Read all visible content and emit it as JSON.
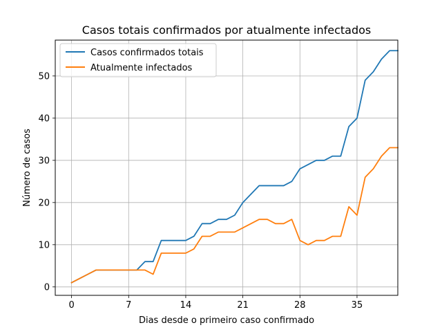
{
  "chart_data": {
    "type": "line",
    "title": "Casos totais confirmados por atualmente infectados",
    "xlabel": "Dias desde o primeiro caso confirmado",
    "ylabel": "Número de casos",
    "xlim": [
      -2,
      40
    ],
    "ylim": [
      -2,
      58.5
    ],
    "xticks": [
      0,
      7,
      14,
      21,
      28,
      35
    ],
    "yticks": [
      0,
      10,
      20,
      30,
      40,
      50
    ],
    "grid": true,
    "legend_position": "upper-left",
    "x": [
      0,
      1,
      2,
      3,
      4,
      5,
      6,
      7,
      8,
      9,
      10,
      11,
      12,
      13,
      14,
      15,
      16,
      17,
      18,
      19,
      20,
      21,
      22,
      23,
      24,
      25,
      26,
      27,
      28,
      29,
      30,
      31,
      32,
      33,
      34,
      35,
      36,
      37,
      38,
      39,
      40
    ],
    "series": [
      {
        "name": "Casos confirmados totais",
        "color": "#1f77b4",
        "values": [
          1,
          2,
          3,
          4,
          4,
          4,
          4,
          4,
          4,
          6,
          6,
          11,
          11,
          11,
          11,
          12,
          15,
          15,
          16,
          16,
          17,
          20,
          22,
          24,
          24,
          24,
          24,
          25,
          28,
          29,
          30,
          30,
          31,
          31,
          38,
          40,
          49,
          51,
          54,
          56,
          56
        ]
      },
      {
        "name": "Atualmente infectados",
        "color": "#ff7f0e",
        "values": [
          1,
          2,
          3,
          4,
          4,
          4,
          4,
          4,
          4,
          4,
          3,
          8,
          8,
          8,
          8,
          9,
          12,
          12,
          13,
          13,
          13,
          14,
          15,
          16,
          16,
          15,
          15,
          16,
          11,
          10,
          11,
          11,
          12,
          12,
          19,
          17,
          26,
          28,
          31,
          33,
          33
        ]
      }
    ]
  }
}
